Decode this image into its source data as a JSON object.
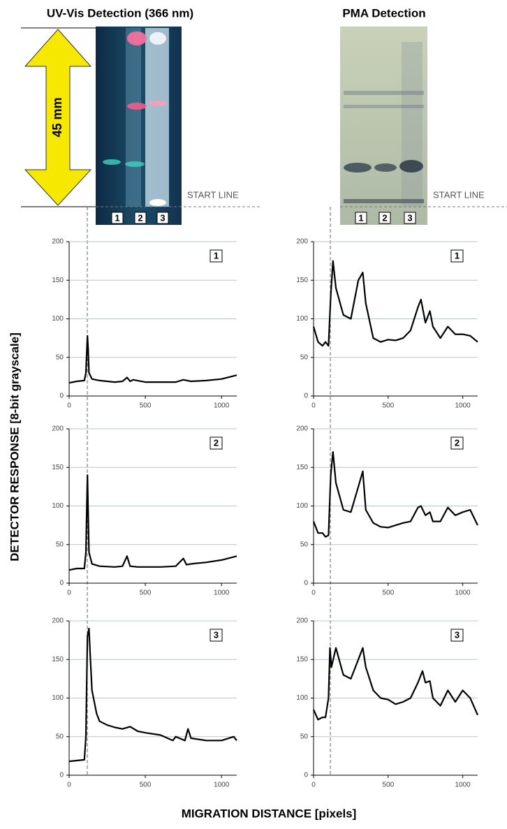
{
  "figure": {
    "uv_title": "UV-Vis Detection (366 nm)",
    "pma_title": "PMA Detection",
    "scale_label": "45 mm",
    "start_line_labels": [
      "START LINE",
      "START LINE"
    ],
    "lanes_left": [
      "1",
      "2",
      "3"
    ],
    "lanes_right": [
      "1",
      "2",
      "3"
    ],
    "y_axis_label": "DETECTOR   RESPONSE [8-bit grayscale]",
    "x_axis_label": "MIGRATION DISTANCE [pixels]"
  },
  "chart_data": [
    {
      "type": "line",
      "label": "1",
      "xlim": [
        0,
        1100
      ],
      "xticks": [
        0,
        500,
        1000
      ],
      "ylim": [
        0,
        200
      ],
      "yticks": [
        0,
        50,
        100,
        150,
        200
      ],
      "grid": true,
      "x": [
        0,
        50,
        100,
        110,
        120,
        125,
        130,
        150,
        200,
        300,
        350,
        380,
        400,
        420,
        500,
        600,
        700,
        750,
        800,
        900,
        1000,
        1100
      ],
      "series": [
        {
          "color": "#000000",
          "values": [
            17,
            19,
            20,
            30,
            78,
            60,
            30,
            22,
            20,
            18,
            19,
            24,
            19,
            21,
            18,
            18,
            18,
            21,
            19,
            20,
            22,
            27
          ]
        }
      ]
    },
    {
      "type": "line",
      "label": "2",
      "xlim": [
        0,
        1100
      ],
      "xticks": [
        0,
        500,
        1000
      ],
      "ylim": [
        0,
        200
      ],
      "yticks": [
        0,
        50,
        100,
        150,
        200
      ],
      "grid": true,
      "x": [
        0,
        50,
        100,
        110,
        120,
        125,
        130,
        150,
        200,
        300,
        350,
        380,
        400,
        450,
        500,
        600,
        700,
        750,
        770,
        800,
        900,
        1000,
        1100
      ],
      "series": [
        {
          "color": "#000000",
          "values": [
            17,
            19,
            19,
            40,
            140,
            90,
            40,
            25,
            22,
            21,
            22,
            35,
            22,
            21,
            21,
            21,
            22,
            32,
            24,
            25,
            27,
            30,
            35
          ]
        }
      ]
    },
    {
      "type": "line",
      "label": "3",
      "xlim": [
        0,
        1100
      ],
      "xticks": [
        0,
        500,
        1000
      ],
      "ylim": [
        0,
        200
      ],
      "yticks": [
        0,
        50,
        100,
        150,
        200
      ],
      "grid": true,
      "x": [
        0,
        50,
        100,
        110,
        120,
        130,
        140,
        150,
        180,
        200,
        250,
        300,
        350,
        400,
        450,
        500,
        600,
        680,
        700,
        760,
        780,
        800,
        900,
        1000,
        1080,
        1100
      ],
      "series": [
        {
          "color": "#000000",
          "values": [
            18,
            19,
            20,
            50,
            180,
            190,
            150,
            110,
            80,
            70,
            65,
            62,
            60,
            63,
            57,
            55,
            52,
            45,
            50,
            45,
            60,
            48,
            45,
            45,
            50,
            45
          ]
        }
      ]
    },
    {
      "type": "line",
      "label": "1",
      "xlim": [
        0,
        1100
      ],
      "xticks": [
        0,
        500,
        1000
      ],
      "ylim": [
        0,
        200
      ],
      "yticks": [
        0,
        50,
        100,
        150,
        200
      ],
      "grid": true,
      "x": [
        0,
        30,
        60,
        80,
        100,
        115,
        130,
        150,
        200,
        250,
        300,
        330,
        350,
        400,
        450,
        500,
        550,
        600,
        650,
        700,
        720,
        750,
        780,
        800,
        850,
        900,
        950,
        1000,
        1050,
        1100
      ],
      "series": [
        {
          "color": "#000000",
          "values": [
            90,
            70,
            65,
            70,
            65,
            130,
            175,
            140,
            105,
            100,
            150,
            160,
            120,
            75,
            70,
            73,
            72,
            75,
            85,
            115,
            125,
            95,
            110,
            90,
            75,
            90,
            80,
            80,
            78,
            70
          ]
        }
      ]
    },
    {
      "type": "line",
      "label": "2",
      "xlim": [
        0,
        1100
      ],
      "xticks": [
        0,
        500,
        1000
      ],
      "ylim": [
        0,
        200
      ],
      "yticks": [
        0,
        50,
        100,
        150,
        200
      ],
      "grid": true,
      "x": [
        0,
        30,
        60,
        80,
        100,
        115,
        130,
        150,
        200,
        250,
        300,
        330,
        350,
        400,
        450,
        500,
        550,
        600,
        650,
        700,
        720,
        750,
        780,
        800,
        850,
        900,
        950,
        1000,
        1050,
        1100
      ],
      "series": [
        {
          "color": "#000000",
          "values": [
            80,
            65,
            65,
            60,
            62,
            140,
            170,
            130,
            95,
            92,
            125,
            145,
            95,
            78,
            73,
            72,
            75,
            78,
            80,
            98,
            100,
            88,
            92,
            80,
            80,
            98,
            88,
            92,
            95,
            75
          ]
        }
      ]
    },
    {
      "type": "line",
      "label": "3",
      "xlim": [
        0,
        1100
      ],
      "xticks": [
        0,
        500,
        1000
      ],
      "ylim": [
        0,
        200
      ],
      "yticks": [
        0,
        50,
        100,
        150,
        200
      ],
      "grid": true,
      "x": [
        0,
        30,
        60,
        80,
        100,
        110,
        120,
        150,
        200,
        250,
        300,
        330,
        350,
        400,
        450,
        500,
        550,
        600,
        650,
        700,
        730,
        750,
        780,
        800,
        850,
        900,
        950,
        1000,
        1050,
        1100
      ],
      "series": [
        {
          "color": "#000000",
          "values": [
            85,
            72,
            75,
            75,
            100,
            165,
            140,
            165,
            130,
            125,
            150,
            165,
            140,
            110,
            100,
            98,
            92,
            95,
            100,
            120,
            135,
            120,
            122,
            100,
            90,
            110,
            95,
            110,
            100,
            78
          ]
        }
      ]
    }
  ]
}
